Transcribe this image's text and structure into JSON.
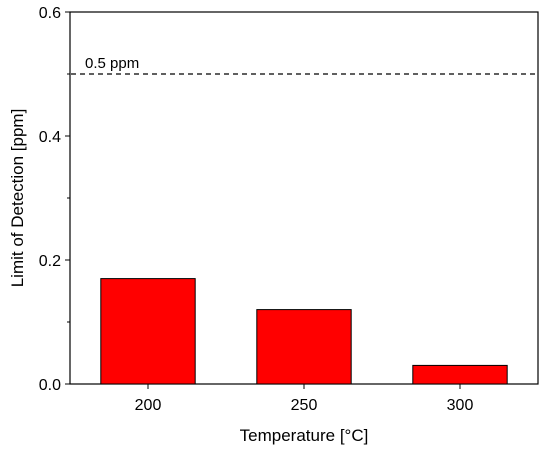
{
  "chart_data": {
    "type": "bar",
    "categories": [
      "200",
      "250",
      "300"
    ],
    "values": [
      0.17,
      0.12,
      0.03
    ],
    "xlabel": "Temperature [°C]",
    "ylabel": "Limit of Detection [ppm]",
    "ylim": [
      0,
      0.6
    ],
    "yticks": [
      0.0,
      0.2,
      0.4,
      0.6
    ],
    "ytick_labels": [
      "0.0",
      "0.2",
      "0.4",
      "0.6"
    ],
    "grid": false,
    "bar_color": "#ff0000",
    "bar_edge_color": "#000000",
    "reference_line": {
      "y": 0.5,
      "style": "dashed",
      "label": "0.5 ppm"
    }
  }
}
